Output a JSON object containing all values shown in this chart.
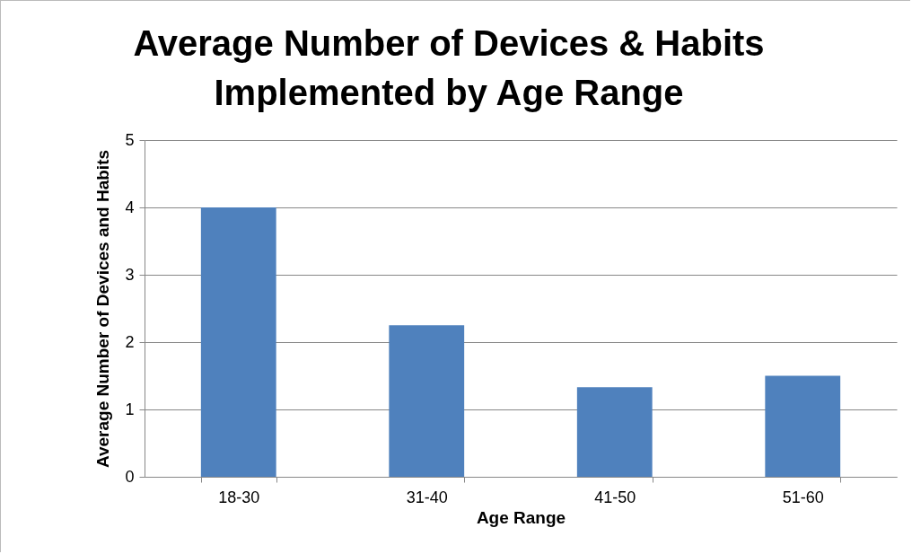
{
  "chart_data": {
    "type": "bar",
    "title": "Average Number of Devices & Habits Implemented by Age Range",
    "xlabel": "Age Range",
    "ylabel": "Average Number of Devices and Habits",
    "categories": [
      "18-30",
      "31-40",
      "41-50",
      "51-60"
    ],
    "values": [
      4,
      2.25,
      1.33,
      1.5
    ],
    "color": "#4f81bd",
    "ylim": [
      0,
      5
    ],
    "yticks": [
      0,
      1,
      2,
      3,
      4,
      5
    ],
    "grid": "y"
  }
}
